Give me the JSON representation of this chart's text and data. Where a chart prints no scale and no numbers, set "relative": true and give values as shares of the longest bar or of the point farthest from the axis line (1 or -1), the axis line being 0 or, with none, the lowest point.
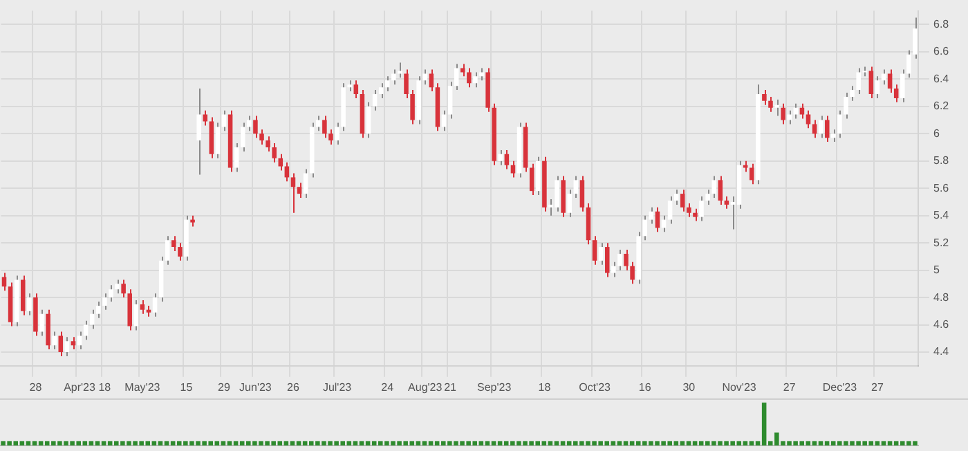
{
  "chart_data": [
    {
      "type": "candlestick",
      "grid": true,
      "legend": false,
      "categories": [
        null,
        null,
        null,
        null,
        null,
        "28",
        null,
        null,
        null,
        null,
        null,
        null,
        "Apr'23",
        null,
        null,
        null,
        "18",
        null,
        null,
        null,
        null,
        null,
        "May'23",
        null,
        null,
        null,
        null,
        null,
        null,
        "15",
        null,
        null,
        null,
        null,
        null,
        "29",
        null,
        null,
        null,
        null,
        "Jun'23",
        null,
        null,
        null,
        null,
        null,
        "26",
        null,
        null,
        null,
        null,
        null,
        null,
        "Jul'23",
        null,
        null,
        null,
        null,
        null,
        null,
        null,
        "24",
        null,
        null,
        null,
        null,
        null,
        "Aug'23",
        null,
        null,
        null,
        "21",
        null,
        null,
        null,
        null,
        null,
        null,
        "Sep'23",
        null,
        null,
        null,
        null,
        null,
        null,
        null,
        "18",
        null,
        null,
        null,
        null,
        null,
        null,
        null,
        "Oct'23",
        null,
        null,
        null,
        null,
        null,
        null,
        null,
        "16",
        null,
        null,
        null,
        null,
        null,
        null,
        "30",
        null,
        null,
        null,
        null,
        null,
        null,
        null,
        "Nov'23",
        null,
        null,
        null,
        null,
        null,
        null,
        null,
        "27",
        null,
        null,
        null,
        null,
        null,
        null,
        null,
        "Dec'23",
        null,
        null,
        null,
        null,
        null,
        "27",
        null,
        null,
        null,
        null,
        null,
        null
      ],
      "ohlc": [
        [
          4.95,
          4.98,
          4.85,
          4.88
        ],
        [
          4.88,
          4.91,
          4.59,
          4.62
        ],
        [
          4.62,
          4.96,
          4.59,
          4.93
        ],
        [
          4.93,
          4.96,
          4.67,
          4.7
        ],
        [
          4.7,
          4.83,
          4.67,
          4.8
        ],
        [
          4.8,
          4.83,
          4.52,
          4.55
        ],
        [
          4.55,
          4.71,
          4.52,
          4.68
        ],
        [
          4.68,
          4.71,
          4.42,
          4.45
        ],
        [
          4.45,
          4.55,
          4.42,
          4.52
        ],
        [
          4.52,
          4.55,
          4.37,
          4.4
        ],
        [
          4.4,
          4.51,
          4.37,
          4.48
        ],
        [
          4.48,
          4.51,
          4.42,
          4.45
        ],
        [
          4.45,
          4.55,
          4.42,
          4.52
        ],
        [
          4.52,
          4.63,
          4.49,
          4.6
        ],
        [
          4.6,
          4.71,
          4.57,
          4.68
        ],
        [
          4.68,
          4.77,
          4.65,
          4.74
        ],
        [
          4.74,
          4.83,
          4.71,
          4.8
        ],
        [
          4.8,
          4.89,
          4.77,
          4.86
        ],
        [
          4.86,
          4.93,
          4.83,
          4.9
        ],
        [
          4.9,
          4.93,
          4.8,
          4.83
        ],
        [
          4.83,
          4.86,
          4.56,
          4.59
        ],
        [
          4.59,
          4.78,
          4.56,
          4.75
        ],
        [
          4.75,
          4.78,
          4.68,
          4.71
        ],
        [
          4.71,
          4.74,
          4.66,
          4.69
        ],
        [
          4.69,
          4.83,
          4.66,
          4.8
        ],
        [
          4.8,
          5.1,
          4.77,
          5.07
        ],
        [
          5.07,
          5.25,
          5.04,
          5.22
        ],
        [
          5.22,
          5.25,
          5.14,
          5.17
        ],
        [
          5.17,
          5.2,
          5.07,
          5.1
        ],
        [
          5.1,
          5.4,
          5.07,
          5.37
        ],
        [
          5.37,
          5.4,
          5.32,
          5.35
        ],
        [
          5.95,
          6.33,
          5.7,
          6.14
        ],
        [
          6.14,
          6.17,
          6.06,
          6.09
        ],
        [
          6.09,
          6.12,
          5.82,
          5.85
        ],
        [
          5.85,
          6.08,
          5.82,
          6.05
        ],
        [
          6.05,
          6.17,
          6.02,
          6.14
        ],
        [
          6.14,
          6.17,
          5.72,
          5.75
        ],
        [
          5.75,
          5.93,
          5.72,
          5.9
        ],
        [
          5.9,
          6.08,
          5.87,
          6.05
        ],
        [
          6.05,
          6.13,
          6.02,
          6.1
        ],
        [
          6.1,
          6.13,
          5.97,
          6.0
        ],
        [
          6.0,
          6.03,
          5.92,
          5.95
        ],
        [
          5.95,
          5.98,
          5.87,
          5.9
        ],
        [
          5.9,
          5.93,
          5.79,
          5.82
        ],
        [
          5.82,
          5.85,
          5.73,
          5.76
        ],
        [
          5.76,
          5.79,
          5.65,
          5.68
        ],
        [
          5.68,
          5.71,
          5.42,
          5.61
        ],
        [
          5.61,
          5.64,
          5.53,
          5.56
        ],
        [
          5.56,
          5.74,
          5.53,
          5.71
        ],
        [
          5.71,
          6.08,
          5.68,
          6.05
        ],
        [
          6.05,
          6.13,
          6.02,
          6.1
        ],
        [
          6.1,
          6.13,
          5.97,
          6.0
        ],
        [
          6.0,
          6.03,
          5.92,
          5.95
        ],
        [
          5.95,
          6.08,
          5.92,
          6.05
        ],
        [
          6.05,
          6.37,
          6.02,
          6.34
        ],
        [
          6.34,
          6.39,
          6.31,
          6.36
        ],
        [
          6.36,
          6.39,
          6.26,
          6.29
        ],
        [
          6.29,
          6.32,
          5.97,
          6.0
        ],
        [
          6.0,
          6.23,
          5.97,
          6.2
        ],
        [
          6.2,
          6.32,
          6.17,
          6.29
        ],
        [
          6.29,
          6.37,
          6.26,
          6.34
        ],
        [
          6.34,
          6.42,
          6.31,
          6.39
        ],
        [
          6.39,
          6.47,
          6.36,
          6.44
        ],
        [
          6.44,
          6.52,
          6.41,
          6.46
        ],
        [
          6.44,
          6.47,
          6.26,
          6.29
        ],
        [
          6.29,
          6.32,
          6.07,
          6.1
        ],
        [
          6.1,
          6.42,
          6.07,
          6.39
        ],
        [
          6.39,
          6.47,
          6.36,
          6.44
        ],
        [
          6.44,
          6.47,
          6.31,
          6.34
        ],
        [
          6.34,
          6.37,
          6.02,
          6.05
        ],
        [
          6.05,
          6.17,
          6.02,
          6.14
        ],
        [
          6.14,
          6.38,
          6.11,
          6.35
        ],
        [
          6.35,
          6.51,
          6.32,
          6.48
        ],
        [
          6.48,
          6.51,
          6.42,
          6.45
        ],
        [
          6.45,
          6.48,
          6.34,
          6.37
        ],
        [
          6.37,
          6.45,
          6.34,
          6.42
        ],
        [
          6.42,
          6.48,
          6.39,
          6.45
        ],
        [
          6.45,
          6.48,
          6.16,
          6.19
        ],
        [
          6.19,
          6.22,
          5.77,
          5.8
        ],
        [
          5.8,
          5.88,
          5.77,
          5.85
        ],
        [
          5.85,
          5.88,
          5.74,
          5.77
        ],
        [
          5.77,
          5.8,
          5.68,
          5.71
        ],
        [
          5.71,
          6.08,
          5.68,
          6.05
        ],
        [
          6.05,
          6.08,
          5.72,
          5.75
        ],
        [
          5.75,
          5.78,
          5.55,
          5.58
        ],
        [
          5.58,
          5.83,
          5.55,
          5.8
        ],
        [
          5.8,
          5.83,
          5.43,
          5.46
        ],
        [
          5.46,
          5.52,
          5.4,
          5.48
        ],
        [
          5.46,
          5.69,
          5.43,
          5.66
        ],
        [
          5.66,
          5.69,
          5.39,
          5.42
        ],
        [
          5.42,
          5.59,
          5.39,
          5.56
        ],
        [
          5.56,
          5.69,
          5.53,
          5.66
        ],
        [
          5.66,
          5.69,
          5.43,
          5.46
        ],
        [
          5.46,
          5.49,
          5.19,
          5.22
        ],
        [
          5.22,
          5.25,
          5.04,
          5.07
        ],
        [
          5.07,
          5.2,
          5.04,
          5.17
        ],
        [
          5.17,
          5.2,
          4.95,
          4.98
        ],
        [
          4.98,
          5.06,
          4.95,
          5.03
        ],
        [
          5.03,
          5.15,
          5.0,
          5.12
        ],
        [
          5.12,
          5.15,
          5.0,
          5.03
        ],
        [
          5.03,
          5.06,
          4.9,
          4.93
        ],
        [
          4.93,
          5.28,
          4.9,
          5.25
        ],
        [
          5.25,
          5.4,
          5.22,
          5.37
        ],
        [
          5.37,
          5.46,
          5.34,
          5.43
        ],
        [
          5.43,
          5.46,
          5.28,
          5.31
        ],
        [
          5.31,
          5.4,
          5.28,
          5.37
        ],
        [
          5.37,
          5.54,
          5.34,
          5.51
        ],
        [
          5.51,
          5.59,
          5.48,
          5.56
        ],
        [
          5.56,
          5.59,
          5.43,
          5.46
        ],
        [
          5.46,
          5.49,
          5.39,
          5.42
        ],
        [
          5.42,
          5.45,
          5.36,
          5.39
        ],
        [
          5.39,
          5.54,
          5.36,
          5.51
        ],
        [
          5.51,
          5.59,
          5.48,
          5.56
        ],
        [
          5.56,
          5.69,
          5.53,
          5.66
        ],
        [
          5.66,
          5.69,
          5.48,
          5.51
        ],
        [
          5.51,
          5.54,
          5.45,
          5.48
        ],
        [
          5.48,
          5.54,
          5.3,
          5.5
        ],
        [
          5.48,
          5.8,
          5.45,
          5.77
        ],
        [
          5.77,
          5.8,
          5.72,
          5.75
        ],
        [
          5.75,
          5.78,
          5.63,
          5.66
        ],
        [
          5.66,
          6.36,
          5.63,
          6.29
        ],
        [
          6.29,
          6.32,
          6.21,
          6.24
        ],
        [
          6.24,
          6.27,
          6.16,
          6.19
        ],
        [
          6.19,
          6.25,
          6.13,
          6.21
        ],
        [
          6.19,
          6.22,
          6.07,
          6.1
        ],
        [
          6.1,
          6.17,
          6.07,
          6.14
        ],
        [
          6.14,
          6.22,
          6.11,
          6.19
        ],
        [
          6.19,
          6.22,
          6.11,
          6.14
        ],
        [
          6.14,
          6.17,
          6.04,
          6.07
        ],
        [
          6.07,
          6.1,
          5.97,
          6.0
        ],
        [
          6.0,
          6.13,
          5.97,
          6.1
        ],
        [
          6.1,
          6.13,
          5.94,
          5.97
        ],
        [
          5.97,
          6.03,
          5.94,
          6.0
        ],
        [
          6.0,
          6.17,
          5.97,
          6.14
        ],
        [
          6.14,
          6.3,
          6.11,
          6.27
        ],
        [
          6.27,
          6.35,
          6.24,
          6.32
        ],
        [
          6.32,
          6.48,
          6.29,
          6.45
        ],
        [
          6.45,
          6.49,
          6.42,
          6.46
        ],
        [
          6.46,
          6.49,
          6.26,
          6.29
        ],
        [
          6.29,
          6.42,
          6.26,
          6.39
        ],
        [
          6.39,
          6.47,
          6.36,
          6.44
        ],
        [
          6.44,
          6.47,
          6.3,
          6.33
        ],
        [
          6.33,
          6.36,
          6.23,
          6.26
        ],
        [
          6.26,
          6.47,
          6.23,
          6.44
        ],
        [
          6.44,
          6.61,
          6.41,
          6.58
        ],
        [
          6.58,
          6.85,
          6.55,
          6.77
        ]
      ],
      "ylim": [
        4.3,
        6.9
      ],
      "yticks": [
        4.4,
        4.6,
        4.8,
        5,
        5.2,
        5.4,
        5.6,
        5.8,
        6,
        6.2,
        6.4,
        6.6,
        6.8
      ]
    },
    {
      "type": "bar",
      "relative": true,
      "color": "#2e8b2e",
      "categories": [
        null,
        null,
        null,
        null,
        null,
        null,
        null,
        null,
        null,
        null,
        null,
        null,
        null,
        null,
        null,
        null,
        null,
        null,
        null,
        null,
        null,
        null,
        null,
        null,
        null,
        null,
        null,
        null,
        null,
        null,
        null,
        null,
        null,
        null,
        null,
        null,
        null,
        null,
        null,
        null,
        null,
        null,
        null,
        null,
        null,
        null,
        null,
        null,
        null,
        null,
        null,
        null,
        null,
        null,
        null,
        null,
        null,
        null,
        null,
        null,
        null,
        null,
        null,
        null,
        null,
        null,
        null,
        null,
        null,
        null,
        null,
        null,
        null,
        null,
        null,
        null,
        null,
        null,
        null,
        null,
        null,
        null,
        null,
        null,
        null,
        null,
        null,
        null,
        null,
        null,
        null,
        null,
        null,
        null,
        null,
        null,
        null,
        null,
        null,
        null,
        null,
        null,
        null,
        null,
        null,
        null,
        null,
        null,
        null,
        null,
        null,
        null,
        null,
        null,
        null,
        null,
        null,
        null,
        null,
        null,
        null,
        null,
        null,
        null,
        null,
        null,
        null,
        null,
        null,
        null,
        null,
        null,
        null,
        null,
        null,
        null,
        null,
        null,
        null,
        null,
        null,
        null,
        null,
        null,
        null,
        null
      ],
      "values": [
        0.1,
        0.1,
        0.1,
        0.1,
        0.1,
        0.1,
        0.1,
        0.1,
        0.1,
        0.1,
        0.1,
        0.1,
        0.1,
        0.1,
        0.1,
        0.1,
        0.1,
        0.1,
        0.1,
        0.1,
        0.1,
        0.1,
        0.1,
        0.1,
        0.1,
        0.1,
        0.1,
        0.1,
        0.1,
        0.1,
        0.1,
        0.1,
        0.1,
        0.1,
        0.1,
        0.1,
        0.1,
        0.1,
        0.1,
        0.1,
        0.1,
        0.1,
        0.1,
        0.1,
        0.1,
        0.1,
        0.1,
        0.1,
        0.1,
        0.1,
        0.1,
        0.1,
        0.1,
        0.1,
        0.1,
        0.1,
        0.1,
        0.1,
        0.1,
        0.1,
        0.1,
        0.1,
        0.1,
        0.1,
        0.1,
        0.1,
        0.1,
        0.1,
        0.1,
        0.1,
        0.1,
        0.1,
        0.1,
        0.1,
        0.1,
        0.1,
        0.1,
        0.1,
        0.1,
        0.1,
        0.1,
        0.1,
        0.1,
        0.1,
        0.1,
        0.1,
        0.1,
        0.1,
        0.1,
        0.1,
        0.1,
        0.1,
        0.1,
        0.1,
        0.1,
        0.1,
        0.1,
        0.1,
        0.1,
        0.1,
        0.1,
        0.1,
        0.1,
        0.1,
        0.1,
        0.1,
        0.1,
        0.1,
        0.1,
        0.1,
        0.1,
        0.1,
        0.1,
        0.1,
        0.1,
        0.1,
        0.1,
        0.1,
        0.1,
        0.1,
        0.1,
        1,
        0.1,
        0.3,
        0.1,
        0.1,
        0.1,
        0.1,
        0.1,
        0.1,
        0.1,
        0.1,
        0.1,
        0.1,
        0.1,
        0.1,
        0.1,
        0.1,
        0.1,
        0.1,
        0.1,
        0.1,
        0.1,
        0.1,
        0.1,
        0.1
      ]
    }
  ]
}
